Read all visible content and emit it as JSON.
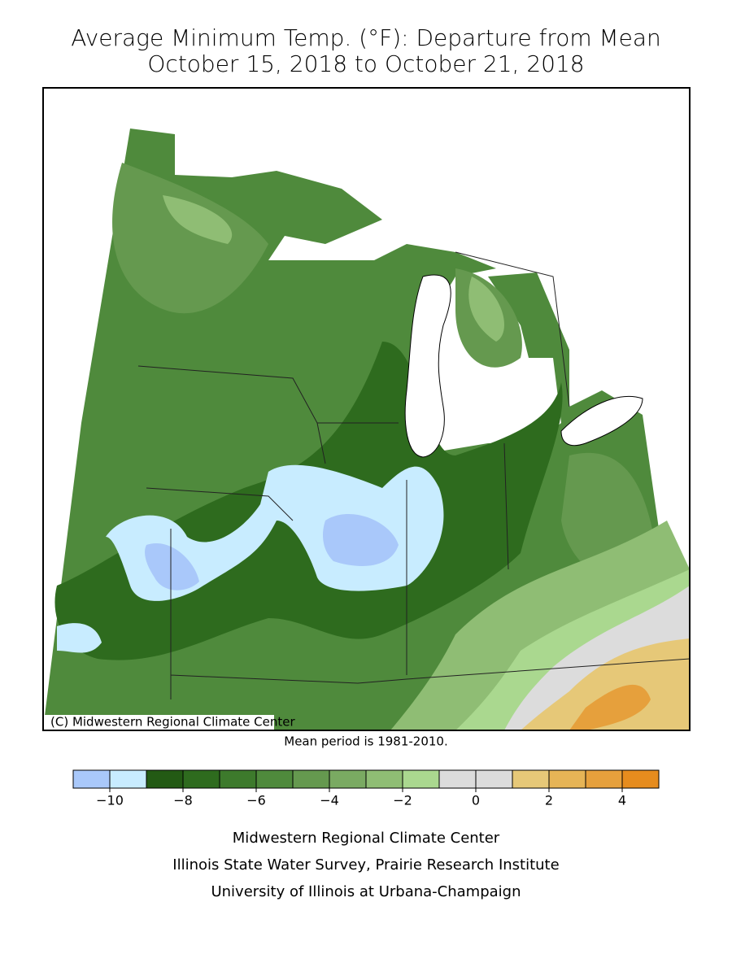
{
  "header": {
    "title": "Average Minimum Temp. (°F): Departure from Mean",
    "subtitle": "October 15, 2018 to October 21, 2018"
  },
  "map": {
    "credit": "(C) Midwestern Regional Climate Center"
  },
  "note": "Mean period is 1981-2010.",
  "legend": {
    "bounds": [
      -11,
      -10,
      -9,
      -8,
      -7,
      -6,
      -5,
      -4,
      -3,
      -2,
      -1,
      0,
      1,
      2,
      3,
      4,
      5
    ],
    "colors": [
      "#a9c8fa",
      "#c8ecff",
      "#235a14",
      "#2e6b1e",
      "#3d7a2c",
      "#4f8a3c",
      "#65994f",
      "#7aaa62",
      "#8fbd74",
      "#aad88f",
      "#dcdcdc",
      "#dcdcdc",
      "#e6c878",
      "#e6b456",
      "#e6a03c",
      "#e68c1e"
    ],
    "ticks": [
      {
        "value": -10,
        "label": "−10"
      },
      {
        "value": -8,
        "label": "−8"
      },
      {
        "value": -6,
        "label": "−6"
      },
      {
        "value": -4,
        "label": "−4"
      },
      {
        "value": -2,
        "label": "−2"
      },
      0,
      2,
      4
    ]
  },
  "footer": [
    "Midwestern Regional Climate Center",
    "Illinois State Water Survey, Prairie Research Institute",
    "University of Illinois at Urbana-Champaign"
  ]
}
